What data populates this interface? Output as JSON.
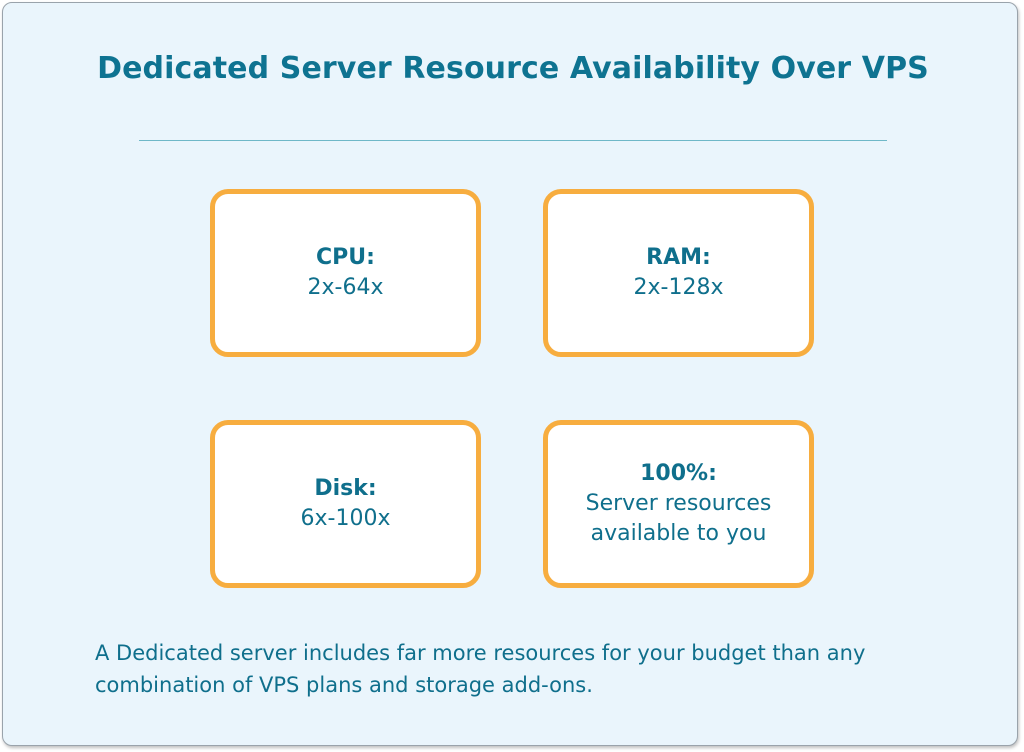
{
  "title": "Dedicated Server Resource Availability Over VPS",
  "boxes": [
    {
      "label": "CPU:",
      "value": "2x-64x"
    },
    {
      "label": "RAM:",
      "value": "2x-128x"
    },
    {
      "label": "Disk:",
      "value": "6x-100x"
    },
    {
      "label": "100%:",
      "value_line1": "Server resources",
      "value_line2": "available to you"
    }
  ],
  "footer": {
    "line1": "A Dedicated server includes far more resources for your budget than any",
    "line2": "combination of VPS plans and storage add-ons."
  },
  "colors": {
    "title": "#0e7391",
    "box_border": "#f7ad3f",
    "background": "#eaf5fc",
    "text": "#0f6f8c"
  }
}
